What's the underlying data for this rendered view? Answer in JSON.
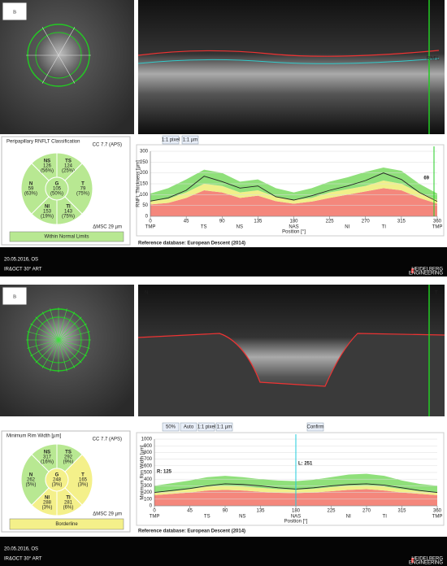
{
  "panels": [
    {
      "label": "B",
      "toolbar": [
        "1:1 pixel",
        "1:1 µm"
      ],
      "oct_labels": [
        "RNFL"
      ],
      "classification": {
        "title": "Peripapillary RNFLT Classification",
        "cc": "CC 7.7 (APS)",
        "sectors": [
          {
            "label": "NS",
            "value": 126,
            "pct": "(56%)",
            "color": "#b8e892"
          },
          {
            "label": "TS",
            "value": 124,
            "pct": "(25%)",
            "color": "#b8e892"
          },
          {
            "label": "N",
            "value": 59,
            "pct": "(63%)",
            "color": "#b8e892"
          },
          {
            "label": "G",
            "value": 105,
            "pct": "(50%)",
            "color": "#b8e892"
          },
          {
            "label": "T",
            "value": 79,
            "pct": "(75%)",
            "color": "#b8e892"
          },
          {
            "label": "NI",
            "value": 153,
            "pct": "(19%)",
            "color": "#b8e892"
          },
          {
            "label": "TI",
            "value": 143,
            "pct": "(75%)",
            "color": "#b8e892"
          }
        ],
        "msc": "ΔMSC 29 µm",
        "status": "Within Normal Limits",
        "status_color": "#b8e892"
      },
      "chart_data": {
        "type": "line",
        "ylabel": "RNFL Thickness [µm]",
        "xlabel": "Position [°]",
        "x": [
          0,
          22.5,
          45,
          67.5,
          90,
          112.5,
          135,
          157.5,
          180,
          202.5,
          225,
          247.5,
          270,
          292.5,
          315,
          337.5,
          360
        ],
        "bands": [
          {
            "color": "#f4877c",
            "values": [
              55,
              62,
              85,
              120,
              110,
              85,
              95,
              70,
              58,
              68,
              85,
              100,
              115,
              130,
              120,
              85,
              58
            ]
          },
          {
            "color": "#f0f08a",
            "values": [
              70,
              80,
              110,
              150,
              140,
              110,
              120,
              90,
              75,
              85,
              110,
              125,
              140,
              165,
              150,
              110,
              75
            ]
          },
          {
            "color": "#8fe07a",
            "values": [
              105,
              130,
              170,
              215,
              200,
              160,
              170,
              130,
              110,
              130,
              160,
              180,
              205,
              225,
              210,
              150,
              105
            ]
          }
        ],
        "series": [
          {
            "color": "#222222",
            "values": [
              70,
              85,
              120,
              185,
              160,
              130,
              140,
              90,
              75,
              95,
              120,
              140,
              165,
              200,
              170,
              110,
              69
            ]
          }
        ],
        "xlim": [
          0,
          360
        ],
        "ylim": [
          0,
          300
        ],
        "xticks": [
          0,
          45,
          90,
          135,
          180,
          225,
          270,
          315,
          360
        ],
        "yticks": [
          0,
          50,
          100,
          150,
          200,
          250,
          300
        ],
        "sector_ticks": [
          {
            "value": 0,
            "label": "TMP"
          },
          {
            "value": 67,
            "label": "TS"
          },
          {
            "value": 112,
            "label": "NS"
          },
          {
            "value": 180,
            "label": "NAS"
          },
          {
            "value": 247,
            "label": "NI"
          },
          {
            "value": 293,
            "label": "TI"
          },
          {
            "value": 360,
            "label": "TMP"
          }
        ],
        "cursor_label": "69",
        "reference": "Reference database: European Descent (2014)"
      },
      "footer": {
        "date": "20.05.2016, OS",
        "mode": "IR&OCT 30° ART",
        "brand": "HEIDELBERG",
        "brand2": "ENGINEERING"
      }
    },
    {
      "label": "B",
      "toolbar": [
        "50%",
        "Auto",
        "1:1 pixel",
        "1:1 µm",
        "Confirm"
      ],
      "oct_labels": [
        "N",
        "T"
      ],
      "classification": {
        "title": "Minimum Rim Width [µm]",
        "cc": "CC 7.7 (APS)",
        "sectors": [
          {
            "label": "NS",
            "value": 317,
            "pct": "(16%)",
            "color": "#b8e892"
          },
          {
            "label": "TS",
            "value": 292,
            "pct": "(9%)",
            "color": "#b8e892"
          },
          {
            "label": "N",
            "value": 262,
            "pct": "(5%)",
            "color": "#b8e892"
          },
          {
            "label": "G",
            "value": 248,
            "pct": "(3%)",
            "color": "#f4f08a"
          },
          {
            "label": "T",
            "value": 165,
            "pct": "(3%)",
            "color": "#f4f08a"
          },
          {
            "label": "NI",
            "value": 288,
            "pct": "(3%)",
            "color": "#f4f08a"
          },
          {
            "label": "TI",
            "value": 281,
            "pct": "(6%)",
            "color": "#f4f08a"
          }
        ],
        "msc": "ΔMSC 29 µm",
        "status": "Borderline",
        "status_color": "#f4f08a"
      },
      "chart_data": {
        "type": "line",
        "ylabel": "Minimum Rim Width [µm]",
        "xlabel": "Position [°]",
        "x": [
          0,
          22.5,
          45,
          67.5,
          90,
          112.5,
          135,
          157.5,
          180,
          202.5,
          225,
          247.5,
          270,
          292.5,
          315,
          337.5,
          360
        ],
        "bands": [
          {
            "color": "#f4877c",
            "values": [
              160,
              180,
              200,
              230,
              240,
              230,
              210,
              195,
              190,
              200,
              220,
              240,
              250,
              230,
              200,
              180,
              160
            ]
          },
          {
            "color": "#f0f08a",
            "values": [
              200,
              220,
              250,
              290,
              300,
              290,
              270,
              250,
              240,
              255,
              280,
              300,
              310,
              290,
              250,
              220,
              200
            ]
          },
          {
            "color": "#8fe07a",
            "values": [
              300,
              340,
              380,
              430,
              450,
              430,
              400,
              380,
              370,
              390,
              430,
              470,
              480,
              450,
              380,
              330,
              300
            ]
          }
        ],
        "series": [
          {
            "color": "#222222",
            "values": [
              200,
              230,
              260,
              300,
              330,
              320,
              300,
              270,
              251,
              270,
              300,
              320,
              330,
              310,
              270,
              230,
              200
            ]
          }
        ],
        "xlim": [
          0,
          360
        ],
        "ylim": [
          0,
          1000
        ],
        "xticks": [
          0,
          45,
          90,
          135,
          180,
          225,
          270,
          315,
          360
        ],
        "yticks": [
          0,
          100,
          200,
          300,
          400,
          500,
          600,
          700,
          800,
          900,
          1000
        ],
        "sector_ticks": [
          {
            "value": 0,
            "label": "TMP"
          },
          {
            "value": 67,
            "label": "TS"
          },
          {
            "value": 112,
            "label": "NS"
          },
          {
            "value": 180,
            "label": "NAS"
          },
          {
            "value": 247,
            "label": "NI"
          },
          {
            "value": 293,
            "label": "TI"
          },
          {
            "value": 360,
            "label": "TMP"
          }
        ],
        "cursor_x": 180,
        "cursor_label": "L: 251",
        "left_label": "R: 125",
        "reference": "Reference database: European Descent (2014)"
      },
      "footer": {
        "date": "20.05.2016, OS",
        "mode": "IR&OCT 30° ART",
        "brand": "HEIDELBERG",
        "brand2": "ENGINEERING"
      }
    }
  ]
}
